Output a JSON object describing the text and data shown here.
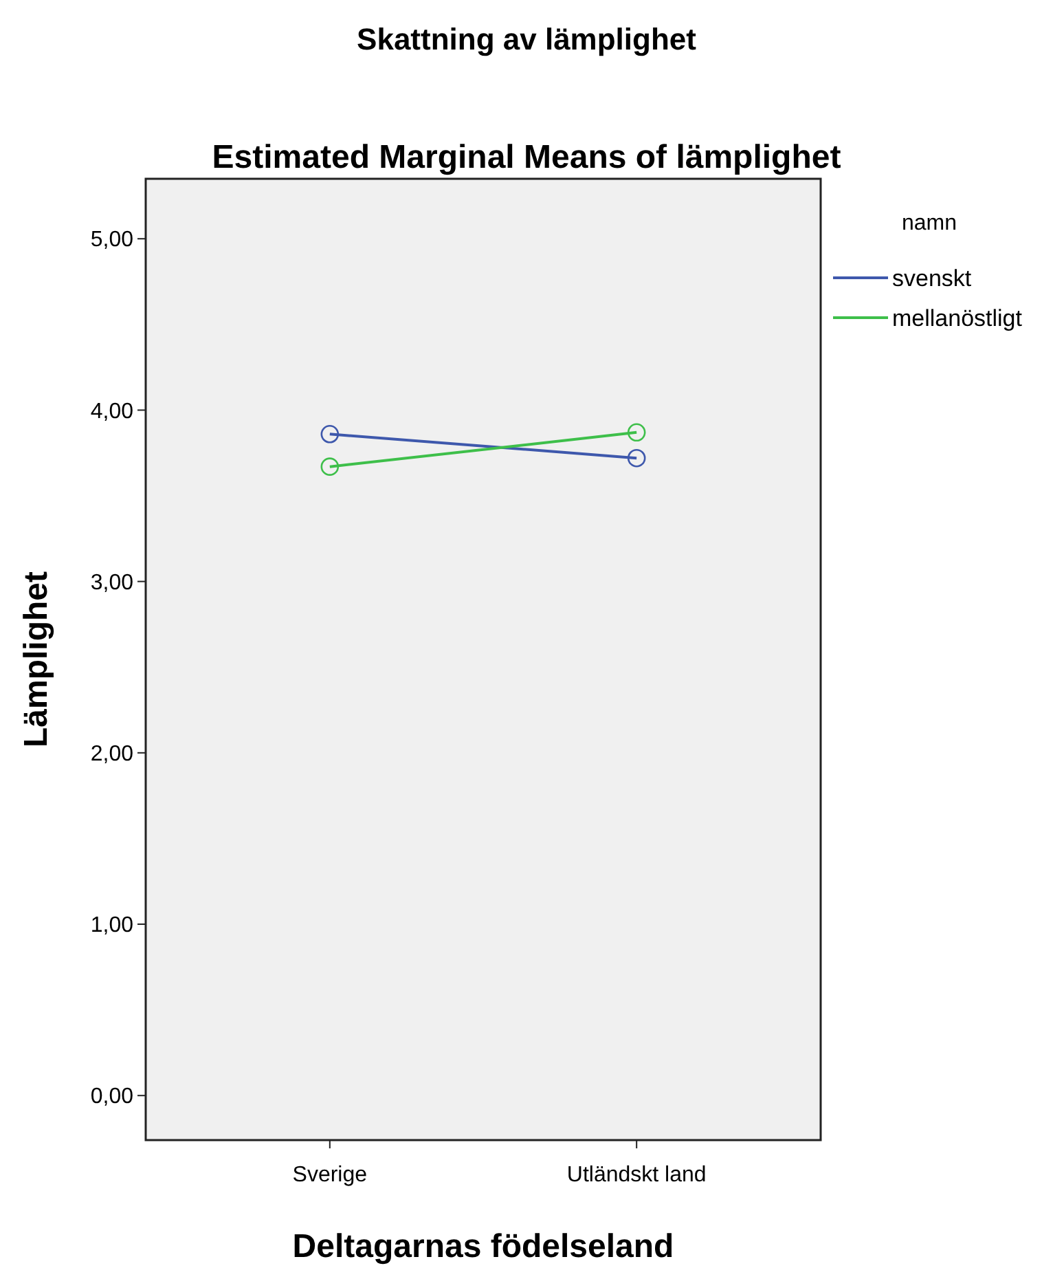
{
  "chart_data": {
    "type": "line",
    "title": "Skattning av lämplighet",
    "subtitle": "Estimated Marginal Means of lämplighet",
    "xlabel": "Deltagarnas födelseland",
    "ylabel": "Lämplighet",
    "legend_title": "namn",
    "categories": [
      "Sverige",
      "Utländskt land"
    ],
    "series": [
      {
        "name": "svenskt",
        "color": "#3e58ac",
        "values": [
          3.86,
          3.72
        ]
      },
      {
        "name": "mellanöstligt",
        "color": "#3ebf4a",
        "values": [
          3.67,
          3.87
        ]
      }
    ],
    "ylim": [
      -0.26,
      5.35
    ],
    "yticks": [
      {
        "value": 0,
        "label": "0,00"
      },
      {
        "value": 1,
        "label": "1,00"
      },
      {
        "value": 2,
        "label": "2,00"
      },
      {
        "value": 3,
        "label": "3,00"
      },
      {
        "value": 4,
        "label": "4,00"
      },
      {
        "value": 5,
        "label": "5,00"
      }
    ],
    "marker": "circle",
    "legend": "top right",
    "grid": false
  }
}
